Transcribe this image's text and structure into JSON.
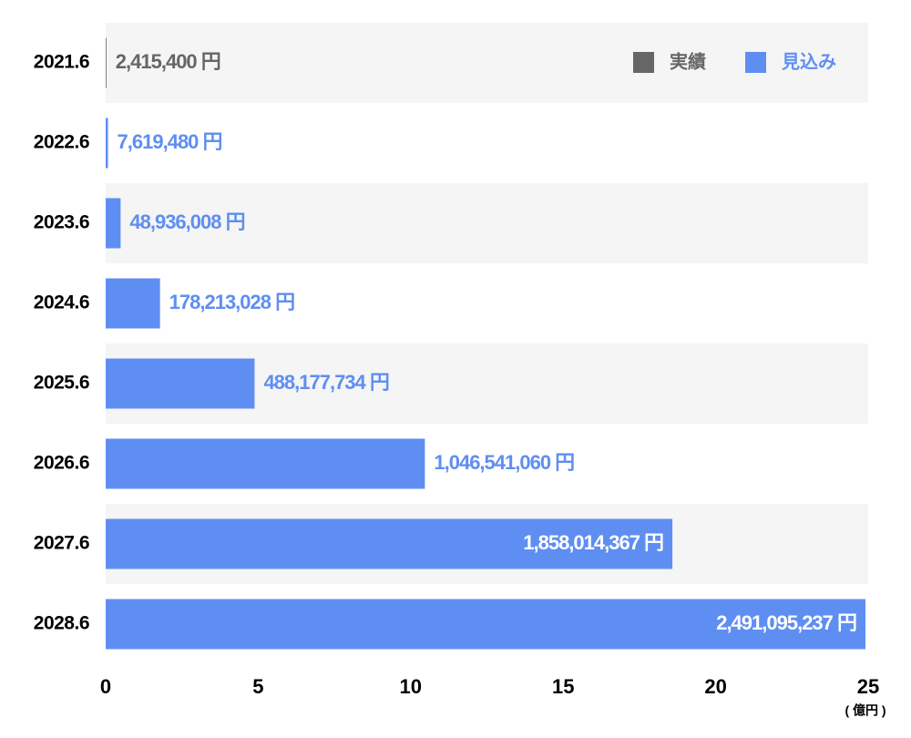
{
  "chart_data": {
    "type": "barh",
    "categories": [
      "2021.6",
      "2022.6",
      "2023.6",
      "2024.6",
      "2025.6",
      "2026.6",
      "2027.6",
      "2028.6"
    ],
    "series": [
      {
        "name": "実績",
        "color": "#666666",
        "values": [
          0.024154,
          null,
          null,
          null,
          null,
          null,
          null,
          null
        ],
        "value_labels": [
          "2,415,400 円",
          null,
          null,
          null,
          null,
          null,
          null,
          null
        ]
      },
      {
        "name": "見込み",
        "color": "#5f8ef2",
        "values": [
          null,
          0.0761948,
          0.48936008,
          1.78213028,
          4.88177734,
          10.4654106,
          18.58014367,
          24.91095237
        ],
        "value_labels": [
          null,
          "7,619,480 円",
          "48,936,008 円",
          "178,213,028 円",
          "488,177,734 円",
          "1,046,541,060 円",
          "1,858,014,367 円",
          "2,491,095,237 円"
        ]
      }
    ],
    "x_label": "( 億円 )",
    "xlim": [
      0,
      25
    ],
    "xticks": [
      0,
      5,
      10,
      15,
      20,
      25
    ],
    "legend": "top-right"
  }
}
